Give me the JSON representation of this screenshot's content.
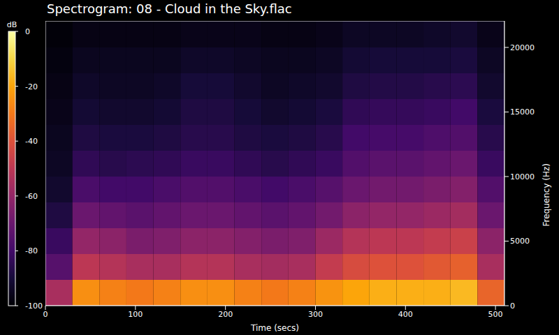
{
  "chart_data": {
    "type": "heatmap",
    "title": "Spectrogram: 08 - Cloud in the Sky.flac",
    "x_label": "Time (secs)",
    "y_label": "Frequency (Hz)",
    "xlim": [
      0,
      510
    ],
    "xticks": [
      0,
      100,
      200,
      300,
      400,
      500
    ],
    "ylim": [
      0,
      22050
    ],
    "yticks": [
      0,
      5000,
      10000,
      15000,
      20000
    ],
    "grid": false,
    "time_bins": [
      0,
      30,
      60,
      90,
      120,
      150,
      180,
      210,
      240,
      270,
      300,
      330,
      360,
      390,
      420,
      450,
      480,
      510
    ],
    "freq_bins": [
      0,
      2000,
      4000,
      6000,
      8000,
      10000,
      12000,
      14000,
      16000,
      18000,
      20000,
      22050
    ],
    "cells": [
      [
        -55,
        -75,
        -82,
        -88,
        -92,
        -94,
        -95,
        -96,
        -97,
        -98,
        -99
      ],
      [
        -25,
        -50,
        -60,
        -70,
        -78,
        -84,
        -88,
        -91,
        -93,
        -95,
        -97
      ],
      [
        -28,
        -52,
        -62,
        -72,
        -80,
        -86,
        -89,
        -92,
        -94,
        -95,
        -97
      ],
      [
        -30,
        -55,
        -66,
        -74,
        -80,
        -85,
        -89,
        -92,
        -94,
        -95,
        -97
      ],
      [
        -28,
        -55,
        -65,
        -72,
        -78,
        -84,
        -88,
        -91,
        -93,
        -95,
        -97
      ],
      [
        -25,
        -52,
        -62,
        -70,
        -76,
        -82,
        -86,
        -88,
        -90,
        -93,
        -96
      ],
      [
        -25,
        -52,
        -62,
        -70,
        -76,
        -82,
        -86,
        -88,
        -90,
        -93,
        -96
      ],
      [
        -28,
        -55,
        -64,
        -72,
        -78,
        -84,
        -88,
        -90,
        -92,
        -94,
        -96
      ],
      [
        -30,
        -56,
        -66,
        -74,
        -80,
        -86,
        -89,
        -92,
        -94,
        -95,
        -97
      ],
      [
        -28,
        -55,
        -65,
        -72,
        -78,
        -84,
        -88,
        -91,
        -93,
        -95,
        -97
      ],
      [
        -24,
        -48,
        -58,
        -68,
        -75,
        -82,
        -86,
        -89,
        -92,
        -94,
        -96
      ],
      [
        -20,
        -42,
        -52,
        -62,
        -70,
        -76,
        -80,
        -84,
        -88,
        -91,
        -94
      ],
      [
        -18,
        -40,
        -50,
        -60,
        -68,
        -74,
        -79,
        -83,
        -87,
        -90,
        -94
      ],
      [
        -18,
        -40,
        -50,
        -60,
        -68,
        -74,
        -79,
        -83,
        -87,
        -90,
        -94
      ],
      [
        -18,
        -38,
        -48,
        -58,
        -66,
        -72,
        -77,
        -82,
        -86,
        -90,
        -93
      ],
      [
        -16,
        -36,
        -46,
        -56,
        -64,
        -70,
        -76,
        -80,
        -85,
        -89,
        -92
      ],
      [
        -35,
        -55,
        -62,
        -70,
        -76,
        -82,
        -86,
        -89,
        -92,
        -94,
        -96
      ]
    ],
    "colorbar": {
      "label": "dB",
      "range": [
        -100,
        0
      ],
      "ticks": [
        0,
        -20,
        -40,
        -60,
        -80,
        -100
      ]
    }
  }
}
